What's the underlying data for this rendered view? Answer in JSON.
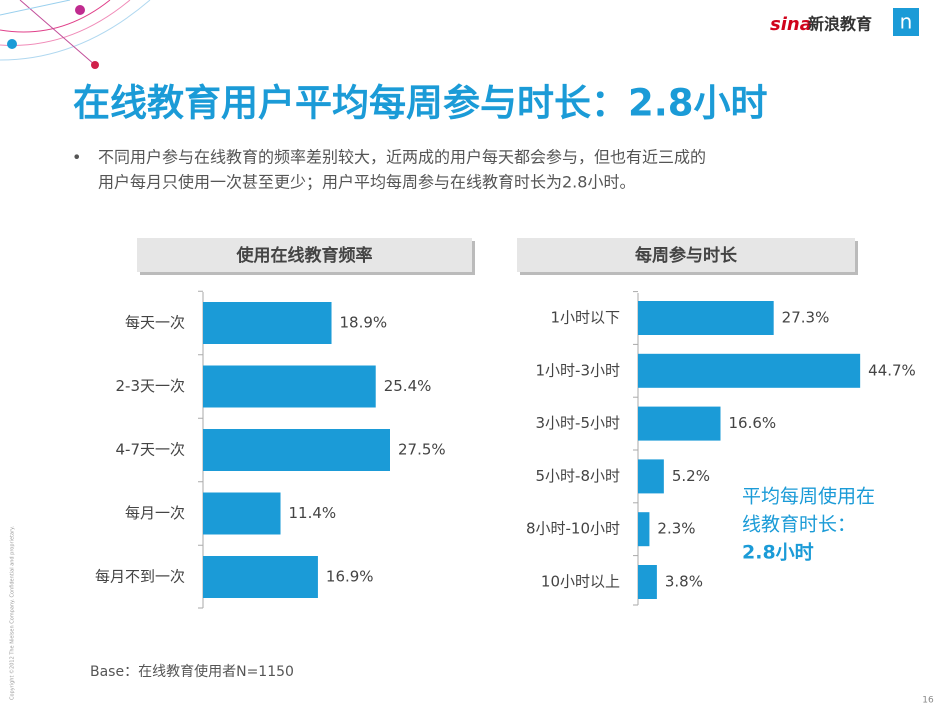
{
  "slide": {
    "logo": "新浪教育",
    "logo_brand": "sina",
    "logo_mark": "n",
    "title": "在线教育用户平均每周参与时长：2.8小时",
    "bullet": [
      "不同用户参与在线教育的频率差别较大，近两成的用户每天都会参与，但也有近三成的",
      "用户每月只使用一次甚至更少；用户平均每周参与在线教育时长为2.8小时。"
    ],
    "base": "Base：在线教育使用者N=1150",
    "page": "16",
    "copyright": "Copyright ©2012 The Nielsen Company. Confidential and proprietary."
  },
  "chart_data": [
    {
      "type": "hbar",
      "title": "使用在线教育频率",
      "color": "#1b9bd7",
      "categories": [
        "每天一次",
        "2-3天一次",
        "4-7天一次",
        "每月一次",
        "每月不到一次"
      ],
      "values": [
        18.9,
        25.4,
        27.5,
        11.4,
        16.9
      ],
      "value_labels": [
        "18.9%",
        "25.4%",
        "27.5%",
        "11.4%",
        "16.9%"
      ]
    },
    {
      "type": "hbar",
      "title": "每周参与时长",
      "color": "#1b9bd7",
      "categories": [
        "1小时以下",
        "1小时-3小时",
        "3小时-5小时",
        "5小时-8小时",
        "8小时-10小时",
        "10小时以上"
      ],
      "values": [
        27.3,
        44.7,
        16.6,
        5.2,
        2.3,
        3.8
      ],
      "value_labels": [
        "27.3%",
        "44.7%",
        "16.6%",
        "5.2%",
        "2.3%",
        "3.8%"
      ],
      "annotation": [
        "平均每周使用在",
        "线教育时长：",
        "2.8小时"
      ]
    }
  ]
}
